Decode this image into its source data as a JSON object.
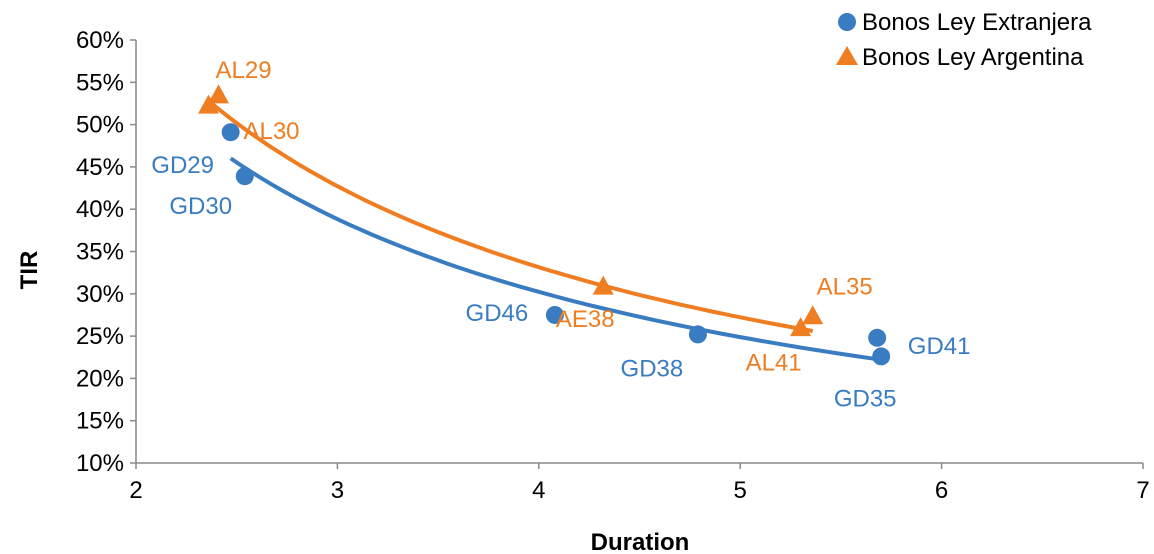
{
  "chart_data": {
    "type": "scatter",
    "xlabel": "Duration",
    "ylabel": "TIR",
    "xlim": [
      2,
      7
    ],
    "ylim": [
      0.1,
      0.6
    ],
    "x_ticks": [
      "2",
      "3",
      "4",
      "5",
      "6",
      "7"
    ],
    "y_ticks": [
      "10%",
      "15%",
      "20%",
      "25%",
      "30%",
      "35%",
      "40%",
      "45%",
      "50%",
      "55%",
      "60%"
    ],
    "legend_position": "top-right",
    "series": [
      {
        "name": "Bonos Ley Extranjera",
        "marker": "circle",
        "color": "#3a7cc1",
        "points": [
          {
            "label": "GD29",
            "x": 2.47,
            "y": 0.491
          },
          {
            "label": "GD30",
            "x": 2.54,
            "y": 0.439
          },
          {
            "label": "GD46",
            "x": 4.08,
            "y": 0.275
          },
          {
            "label": "GD38",
            "x": 4.79,
            "y": 0.252
          },
          {
            "label": "GD41",
            "x": 5.68,
            "y": 0.248
          },
          {
            "label": "GD35",
            "x": 5.7,
            "y": 0.226
          }
        ],
        "trendline": {
          "type": "power",
          "x_range": [
            2.47,
            5.7
          ],
          "y_range": [
            0.46,
            0.222
          ]
        }
      },
      {
        "name": "Bonos Ley Argentina",
        "marker": "triangle",
        "color": "#ef7d22",
        "points": [
          {
            "label": "AL30",
            "x": 2.36,
            "y": 0.522
          },
          {
            "label": "AL29",
            "x": 2.41,
            "y": 0.534
          },
          {
            "label": "AE38",
            "x": 4.32,
            "y": 0.308
          },
          {
            "label": "AL41",
            "x": 5.3,
            "y": 0.259
          },
          {
            "label": "AL35",
            "x": 5.36,
            "y": 0.273
          }
        ],
        "trendline": {
          "type": "power",
          "x_range": [
            2.36,
            5.36
          ],
          "y_range": [
            0.528,
            0.256
          ]
        }
      }
    ]
  }
}
